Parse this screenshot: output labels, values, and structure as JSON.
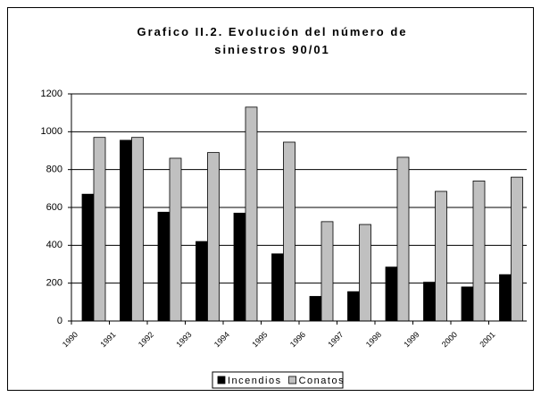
{
  "chart_data": {
    "type": "bar",
    "title": "Grafico II.2. Evolución del número de siniestros 90/01",
    "categories": [
      "1990",
      "1991",
      "1992",
      "1993",
      "1994",
      "1995",
      "1996",
      "1997",
      "1998",
      "1999",
      "2000",
      "2001"
    ],
    "series": [
      {
        "name": "Incendios",
        "color": "#000000",
        "values": [
          670,
          955,
          575,
          420,
          570,
          355,
          130,
          155,
          285,
          205,
          180,
          245
        ]
      },
      {
        "name": "Conatos",
        "color": "#c0c0c0",
        "values": [
          970,
          970,
          860,
          890,
          1130,
          945,
          525,
          510,
          865,
          685,
          740,
          760
        ]
      }
    ],
    "ylim": [
      0,
      1200
    ],
    "yticks": [
      0,
      200,
      400,
      600,
      800,
      1000,
      1200
    ],
    "grid": true,
    "legend": "bottom"
  }
}
